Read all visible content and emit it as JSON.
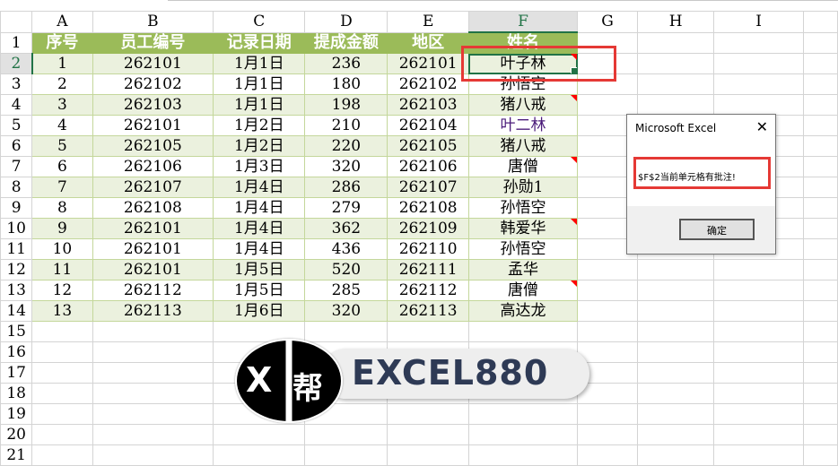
{
  "columns": [
    "A",
    "B",
    "C",
    "D",
    "E",
    "F",
    "G",
    "H",
    "I"
  ],
  "selected_column": "F",
  "selected_row": 2,
  "header_row": [
    "序号",
    "员工编号",
    "记录日期",
    "提成金额",
    "地区",
    "姓名"
  ],
  "rows": [
    [
      "1",
      "262101",
      "1月1日",
      "236",
      "262101",
      "叶子林"
    ],
    [
      "2",
      "262102",
      "1月1日",
      "180",
      "262102",
      "孙悟空"
    ],
    [
      "3",
      "262103",
      "1月1日",
      "198",
      "262103",
      "猪八戒"
    ],
    [
      "4",
      "262101",
      "1月2日",
      "210",
      "262104",
      "叶二林"
    ],
    [
      "5",
      "262105",
      "1月2日",
      "220",
      "262105",
      "猪八戒"
    ],
    [
      "6",
      "262106",
      "1月3日",
      "320",
      "262106",
      "唐僧"
    ],
    [
      "7",
      "262107",
      "1月4日",
      "286",
      "262107",
      "孙勋1"
    ],
    [
      "8",
      "262108",
      "1月4日",
      "279",
      "262108",
      "孙悟空"
    ],
    [
      "9",
      "262101",
      "1月4日",
      "362",
      "262109",
      "韩爱华"
    ],
    [
      "10",
      "262101",
      "1月4日",
      "436",
      "262110",
      "孙悟空"
    ],
    [
      "11",
      "262101",
      "1月5日",
      "520",
      "262111",
      "孟华"
    ],
    [
      "12",
      "262112",
      "1月5日",
      "285",
      "262112",
      "唐僧"
    ],
    [
      "13",
      "262113",
      "1月6日",
      "320",
      "262113",
      "高达龙"
    ]
  ],
  "comment_rows": [
    2,
    4,
    7,
    10,
    13
  ],
  "total_rows": 21,
  "dialog": {
    "title": "Microsoft Excel",
    "message": "$F$2当前单元格有批注!",
    "ok_label": "确定",
    "close_icon": "close-icon"
  },
  "logo": {
    "mark_x": "X",
    "mark_char": "帮",
    "text": "EXCEL880"
  },
  "colors": {
    "header_fill": "#9bbb59",
    "band_fill": "#ebf1de",
    "selection": "#217346",
    "highlight_box": "#e53935",
    "comment_marker": "#ff0000"
  }
}
